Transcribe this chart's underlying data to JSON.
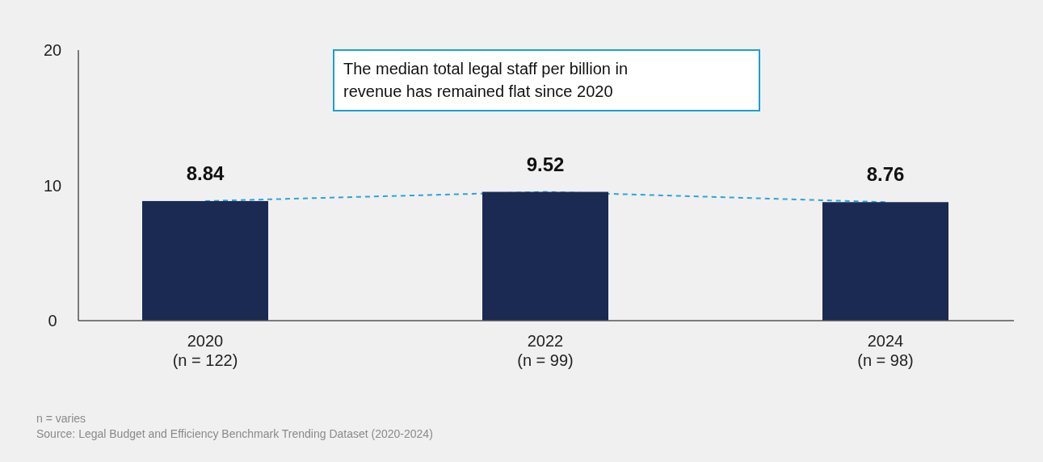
{
  "chart_data": {
    "type": "bar",
    "categories": [
      "2020\n(n = 122)",
      "2022\n(n = 99)",
      "2024\n(n = 98)"
    ],
    "series": [
      {
        "color": "#1b2a52",
        "values": [
          8.84,
          9.52,
          8.76
        ],
        "value_labels": [
          "8.84",
          "9.52",
          "8.76"
        ]
      },
      {
        "type": "line",
        "color": "#2aa5dd",
        "values": [
          8.84,
          9.52,
          8.76
        ],
        "line_style": "dashed",
        "marker": "none"
      }
    ],
    "ylim": [
      0,
      20
    ],
    "yticks": [
      0,
      10,
      20
    ],
    "grid": false,
    "annotations": [
      "The median total legal staff per billion in\nrevenue has remained flat since 2020",
      "n = varies",
      "Source: Legal Budget and Efficiency Benchmark Trending Dataset (2020-2024)"
    ]
  }
}
